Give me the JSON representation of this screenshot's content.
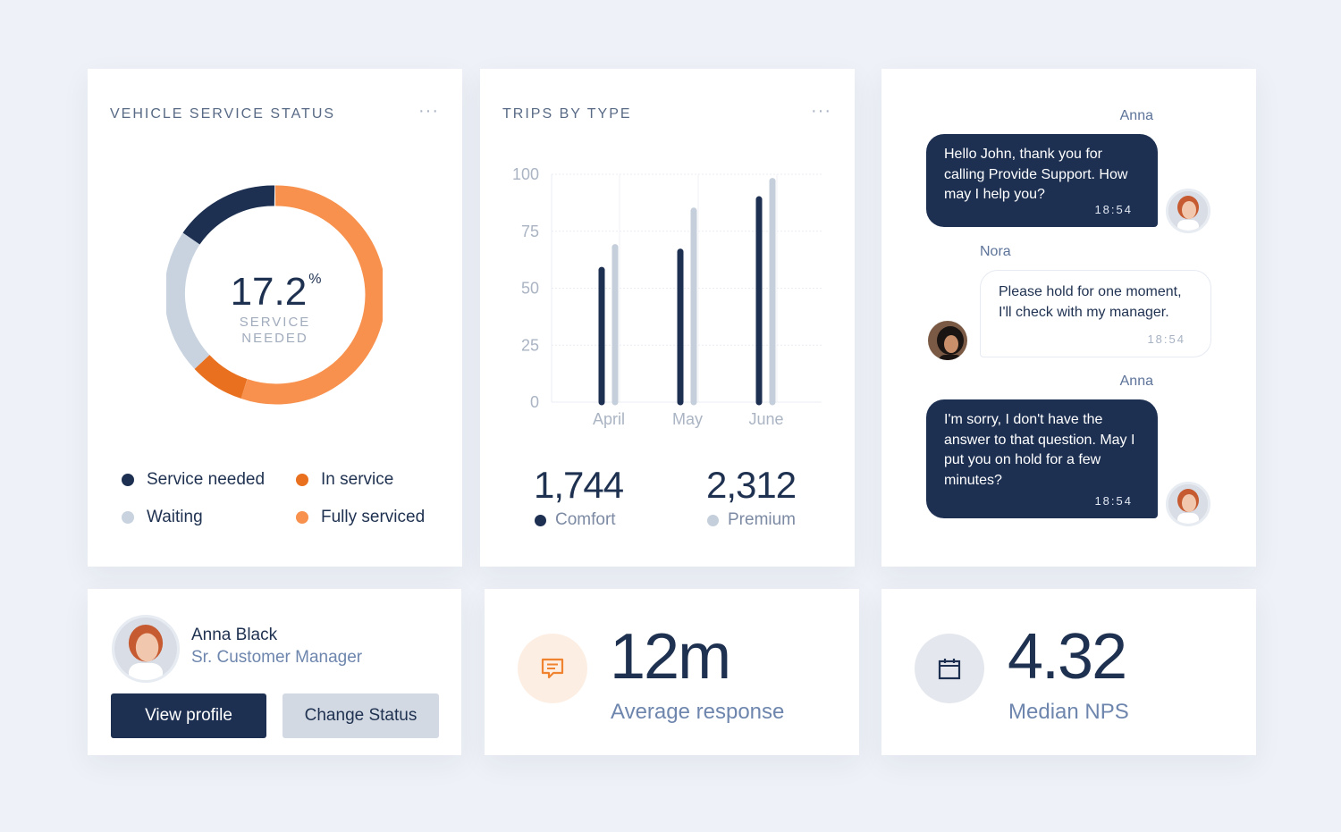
{
  "colors": {
    "navy": "#1d3052",
    "orange": "#f7914d",
    "dark_orange": "#e8701f",
    "gray": "#c8d3df",
    "premium": "#c4cfdb"
  },
  "vehicle_status": {
    "title": "VEHICLE SERVICE STATUS",
    "more": "···",
    "center_value": "17.2",
    "center_unit": "%",
    "center_label_line1": "SERVICE",
    "center_label_line2": "NEEDED",
    "legend": {
      "service_needed": "Service needed",
      "in_service": "In service",
      "waiting": "Waiting",
      "fully_serviced": "Fully serviced"
    }
  },
  "chart_data": {
    "type": "bar",
    "title": "TRIPS BY TYPE",
    "categories": [
      "April",
      "May",
      "June"
    ],
    "series": [
      {
        "name": "Comfort",
        "values": [
          58,
          66,
          89
        ],
        "color": "#1d3052"
      },
      {
        "name": "Premium",
        "values": [
          68,
          84,
          97
        ],
        "color": "#c4cfdb"
      }
    ],
    "ylim": [
      0,
      100
    ],
    "yticks": [
      "100",
      "75",
      "50",
      "25",
      "0"
    ],
    "grid": true,
    "xlabel": "",
    "ylabel": ""
  },
  "trips": {
    "more": "···",
    "comfort_total": "1,744",
    "comfort_label": "Comfort",
    "premium_total": "2,312",
    "premium_label": "Premium"
  },
  "chat": {
    "messages": [
      {
        "name": "Anna",
        "text": "Hello John, thank you for calling Provide Support. How may I help you?",
        "time": "18:54"
      },
      {
        "name": "Nora",
        "text": "Please hold for one moment, I'll check with my manager.",
        "time": "18:54"
      },
      {
        "name": "Anna",
        "text": "I'm sorry, I don't have the answer to that question. May I put you on hold for a few minutes?",
        "time": "18:54"
      }
    ]
  },
  "profile": {
    "name": "Anna Black",
    "role": "Sr. Customer Manager",
    "view_profile": "View profile",
    "change_status": "Change Status"
  },
  "kpi": {
    "response_value": "12m",
    "response_label": "Average response",
    "nps_value": "4.32",
    "nps_label": "Median NPS"
  }
}
